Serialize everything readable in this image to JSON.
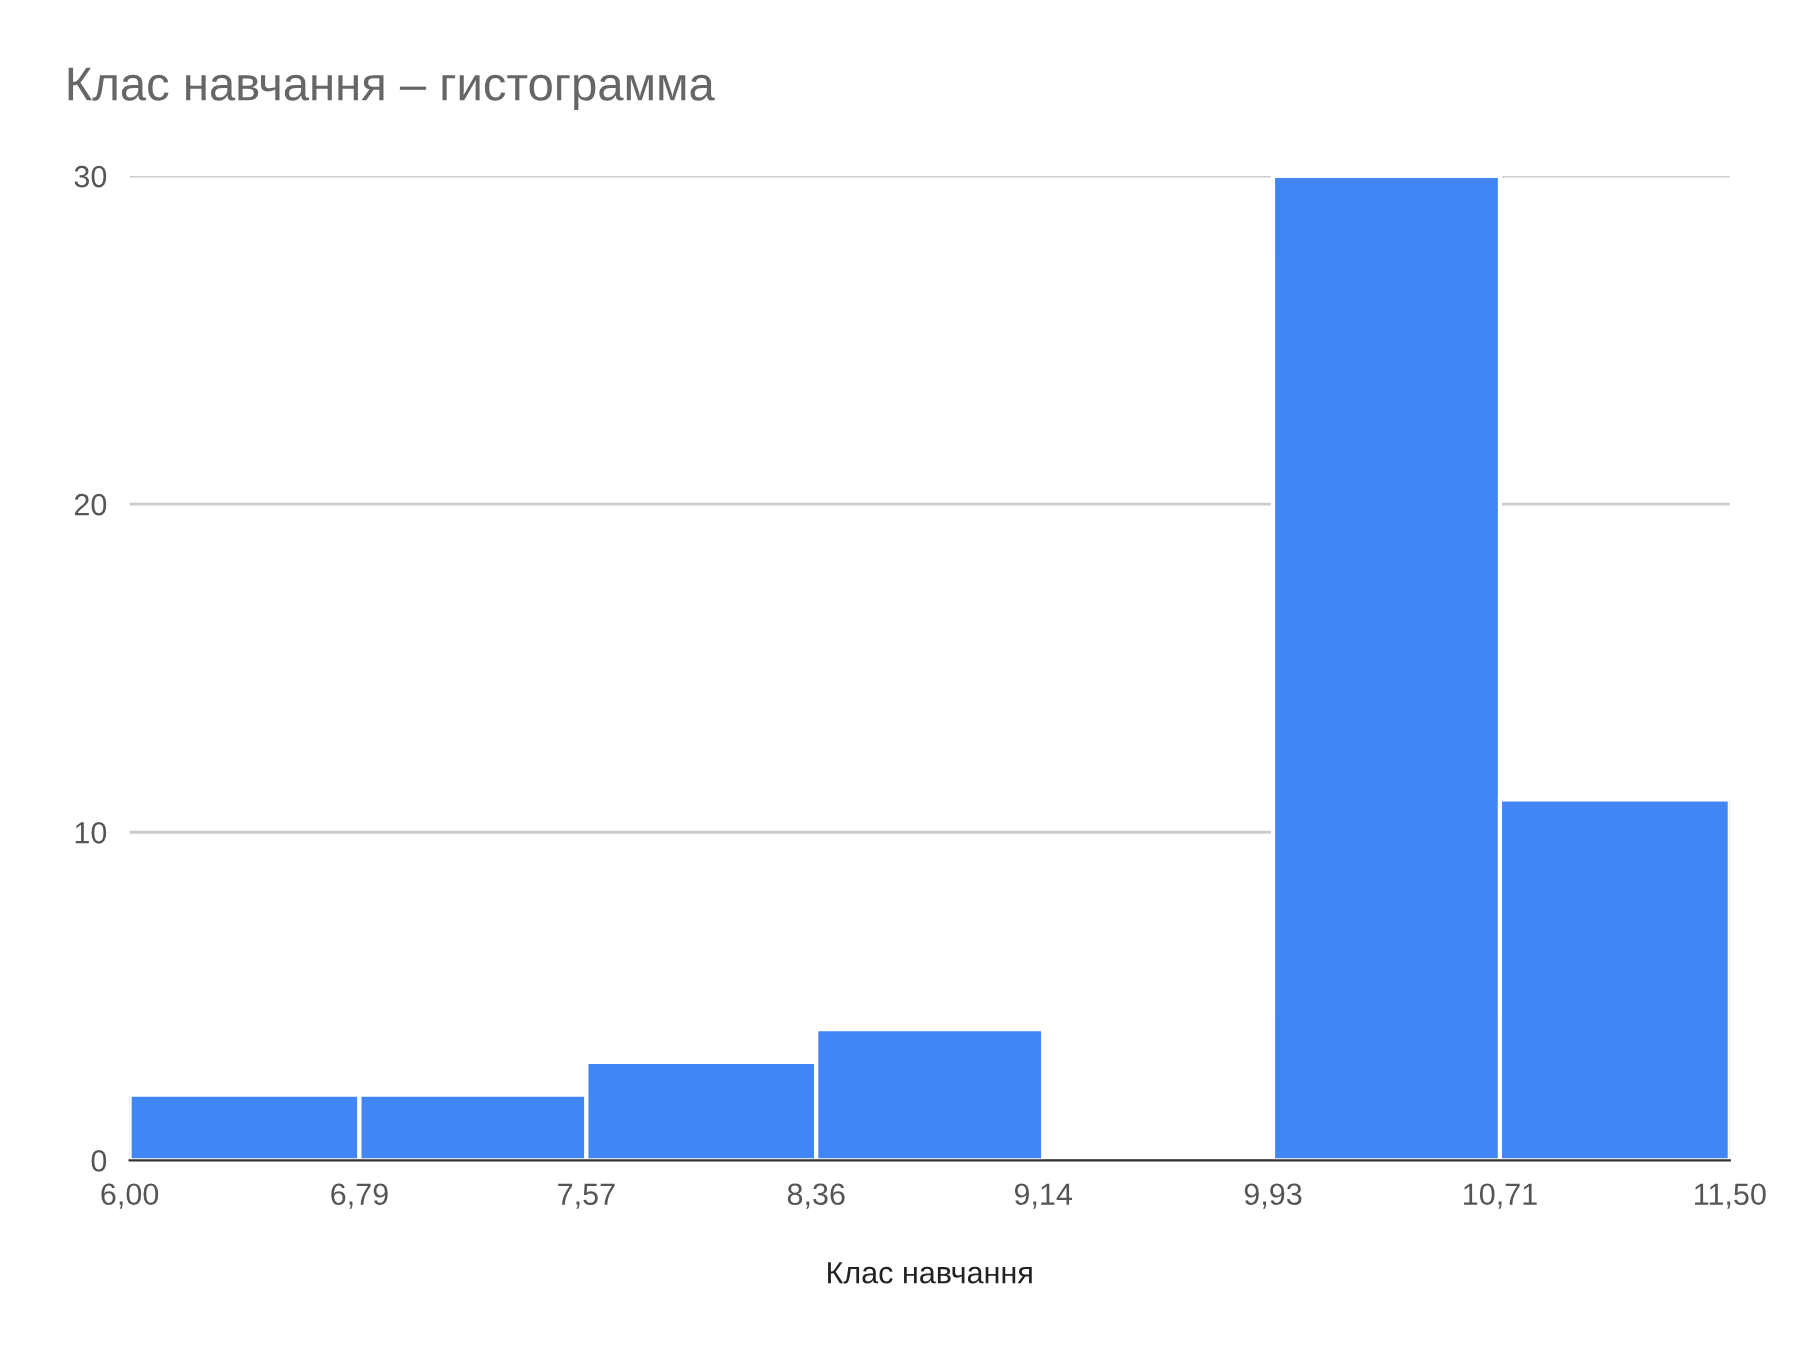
{
  "chart_data": {
    "type": "histogram",
    "title": "Клас навчання – гистограмма",
    "xlabel": "Клас навчання",
    "bins": [
      6.0,
      6.79,
      7.57,
      8.36,
      9.14,
      9.93,
      10.71,
      11.5
    ],
    "values": [
      2,
      2,
      3,
      4,
      0,
      30,
      11
    ],
    "color": "#4285f4",
    "xlim": [
      6.0,
      11.5
    ],
    "xticks": [
      {
        "value": 6.0,
        "label": "6,00"
      },
      {
        "value": 6.79,
        "label": "6,79"
      },
      {
        "value": 7.57,
        "label": "7,57"
      },
      {
        "value": 8.36,
        "label": "8,36"
      },
      {
        "value": 9.14,
        "label": "9,14"
      },
      {
        "value": 9.93,
        "label": "9,93"
      },
      {
        "value": 10.71,
        "label": "10,71"
      },
      {
        "value": 11.5,
        "label": "11,50"
      }
    ],
    "ylim": [
      0,
      30
    ],
    "yticks": [
      0,
      10,
      20,
      30
    ],
    "grid": "y",
    "legend": false
  }
}
